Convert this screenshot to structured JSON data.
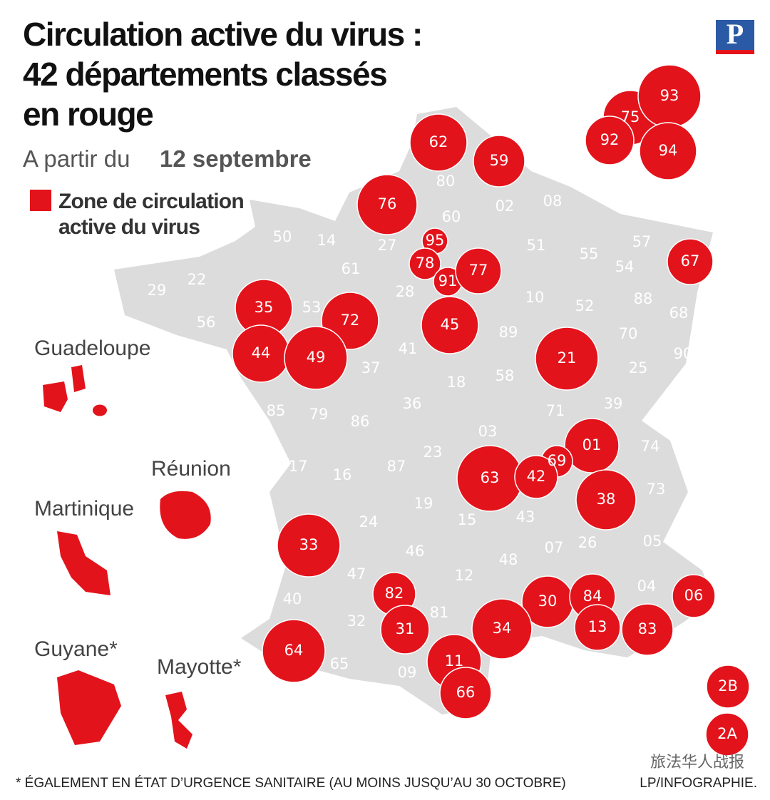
{
  "logo": "P",
  "title": [
    "Circulation active du virus :",
    "42 départements classés",
    "en rouge"
  ],
  "subtitle": {
    "prefix": "A partir du",
    "date": "12 septembre"
  },
  "legend": {
    "color": "#e3131b",
    "label": [
      "Zone de circulation",
      "active du virus"
    ]
  },
  "land_color": "#dcdcdc",
  "departments": [
    {
      "label": "62",
      "color": "#e3131b"
    },
    {
      "label": "59",
      "color": "#e3131b"
    },
    {
      "label": "80",
      "color": "#dcdcdc"
    },
    {
      "label": "76",
      "color": "#e3131b"
    },
    {
      "label": "02",
      "color": "#dcdcdc"
    },
    {
      "label": "08",
      "color": "#dcdcdc"
    },
    {
      "label": "60",
      "color": "#dcdcdc"
    },
    {
      "label": "50",
      "color": "#dcdcdc"
    },
    {
      "label": "14",
      "color": "#dcdcdc"
    },
    {
      "label": "27",
      "color": "#dcdcdc"
    },
    {
      "label": "95",
      "color": "#e3131b"
    },
    {
      "label": "78",
      "color": "#e3131b"
    },
    {
      "label": "91",
      "color": "#e3131b"
    },
    {
      "label": "77",
      "color": "#e3131b"
    },
    {
      "label": "51",
      "color": "#dcdcdc"
    },
    {
      "label": "55",
      "color": "#dcdcdc"
    },
    {
      "label": "57",
      "color": "#dcdcdc"
    },
    {
      "label": "67",
      "color": "#e3131b"
    },
    {
      "label": "61",
      "color": "#dcdcdc"
    },
    {
      "label": "54",
      "color": "#dcdcdc"
    },
    {
      "label": "29",
      "color": "#dcdcdc"
    },
    {
      "label": "22",
      "color": "#dcdcdc"
    },
    {
      "label": "35",
      "color": "#e3131b"
    },
    {
      "label": "53",
      "color": "#dcdcdc"
    },
    {
      "label": "72",
      "color": "#e3131b"
    },
    {
      "label": "28",
      "color": "#dcdcdc"
    },
    {
      "label": "10",
      "color": "#dcdcdc"
    },
    {
      "label": "52",
      "color": "#dcdcdc"
    },
    {
      "label": "88",
      "color": "#dcdcdc"
    },
    {
      "label": "68",
      "color": "#dcdcdc"
    },
    {
      "label": "56",
      "color": "#dcdcdc"
    },
    {
      "label": "45",
      "color": "#e3131b"
    },
    {
      "label": "89",
      "color": "#dcdcdc"
    },
    {
      "label": "70",
      "color": "#dcdcdc"
    },
    {
      "label": "90",
      "color": "#dcdcdc"
    },
    {
      "label": "44",
      "color": "#e3131b"
    },
    {
      "label": "49",
      "color": "#e3131b"
    },
    {
      "label": "41",
      "color": "#dcdcdc"
    },
    {
      "label": "21",
      "color": "#e3131b"
    },
    {
      "label": "25",
      "color": "#dcdcdc"
    },
    {
      "label": "37",
      "color": "#dcdcdc"
    },
    {
      "label": "18",
      "color": "#dcdcdc"
    },
    {
      "label": "58",
      "color": "#dcdcdc"
    },
    {
      "label": "36",
      "color": "#dcdcdc"
    },
    {
      "label": "85",
      "color": "#dcdcdc"
    },
    {
      "label": "79",
      "color": "#dcdcdc"
    },
    {
      "label": "86",
      "color": "#dcdcdc"
    },
    {
      "label": "71",
      "color": "#dcdcdc"
    },
    {
      "label": "39",
      "color": "#dcdcdc"
    },
    {
      "label": "03",
      "color": "#dcdcdc"
    },
    {
      "label": "01",
      "color": "#e3131b"
    },
    {
      "label": "74",
      "color": "#dcdcdc"
    },
    {
      "label": "23",
      "color": "#dcdcdc"
    },
    {
      "label": "69",
      "color": "#e3131b"
    },
    {
      "label": "17",
      "color": "#dcdcdc"
    },
    {
      "label": "87",
      "color": "#dcdcdc"
    },
    {
      "label": "63",
      "color": "#e3131b"
    },
    {
      "label": "42",
      "color": "#e3131b"
    },
    {
      "label": "16",
      "color": "#dcdcdc"
    },
    {
      "label": "73",
      "color": "#dcdcdc"
    },
    {
      "label": "38",
      "color": "#e3131b"
    },
    {
      "label": "19",
      "color": "#dcdcdc"
    },
    {
      "label": "24",
      "color": "#dcdcdc"
    },
    {
      "label": "15",
      "color": "#dcdcdc"
    },
    {
      "label": "43",
      "color": "#dcdcdc"
    },
    {
      "label": "33",
      "color": "#e3131b"
    },
    {
      "label": "46",
      "color": "#dcdcdc"
    },
    {
      "label": "07",
      "color": "#dcdcdc"
    },
    {
      "label": "26",
      "color": "#dcdcdc"
    },
    {
      "label": "05",
      "color": "#dcdcdc"
    },
    {
      "label": "48",
      "color": "#dcdcdc"
    },
    {
      "label": "47",
      "color": "#dcdcdc"
    },
    {
      "label": "12",
      "color": "#dcdcdc"
    },
    {
      "label": "04",
      "color": "#dcdcdc"
    },
    {
      "label": "06",
      "color": "#e3131b"
    },
    {
      "label": "82",
      "color": "#e3131b"
    },
    {
      "label": "30",
      "color": "#e3131b"
    },
    {
      "label": "84",
      "color": "#e3131b"
    },
    {
      "label": "40",
      "color": "#dcdcdc"
    },
    {
      "label": "81",
      "color": "#dcdcdc"
    },
    {
      "label": "32",
      "color": "#dcdcdc"
    },
    {
      "label": "34",
      "color": "#e3131b"
    },
    {
      "label": "13",
      "color": "#e3131b"
    },
    {
      "label": "83",
      "color": "#e3131b"
    },
    {
      "label": "31",
      "color": "#e3131b"
    },
    {
      "label": "64",
      "color": "#e3131b"
    },
    {
      "label": "65",
      "color": "#dcdcdc"
    },
    {
      "label": "11",
      "color": "#e3131b"
    },
    {
      "label": "09",
      "color": "#dcdcdc"
    },
    {
      "label": "66",
      "color": "#e3131b"
    },
    {
      "label": "2B",
      "color": "#e3131b"
    },
    {
      "label": "2A",
      "color": "#e3131b"
    },
    {
      "label": "75",
      "color": "#e3131b"
    },
    {
      "label": "93",
      "color": "#e3131b"
    },
    {
      "label": "92",
      "color": "#e3131b"
    },
    {
      "label": "94",
      "color": "#e3131b"
    }
  ],
  "overseas": [
    {
      "label": "Guadeloupe",
      "color": "#e3131b"
    },
    {
      "label": "Réunion",
      "color": "#e3131b"
    },
    {
      "label": "Martinique",
      "color": "#e3131b"
    },
    {
      "label": "Guyane*",
      "color": "#e3131b"
    },
    {
      "label": "Mayotte*",
      "color": "#e3131b"
    }
  ],
  "footnote": "* ÉGALEMENT EN ÉTAT D’URGENCE SANITAIRE (AU MOINS JUSQU’AU 30 OCTOBRE)",
  "credit": "LP/INFOGRAPHIE.",
  "watermark": "旅法华人战报"
}
